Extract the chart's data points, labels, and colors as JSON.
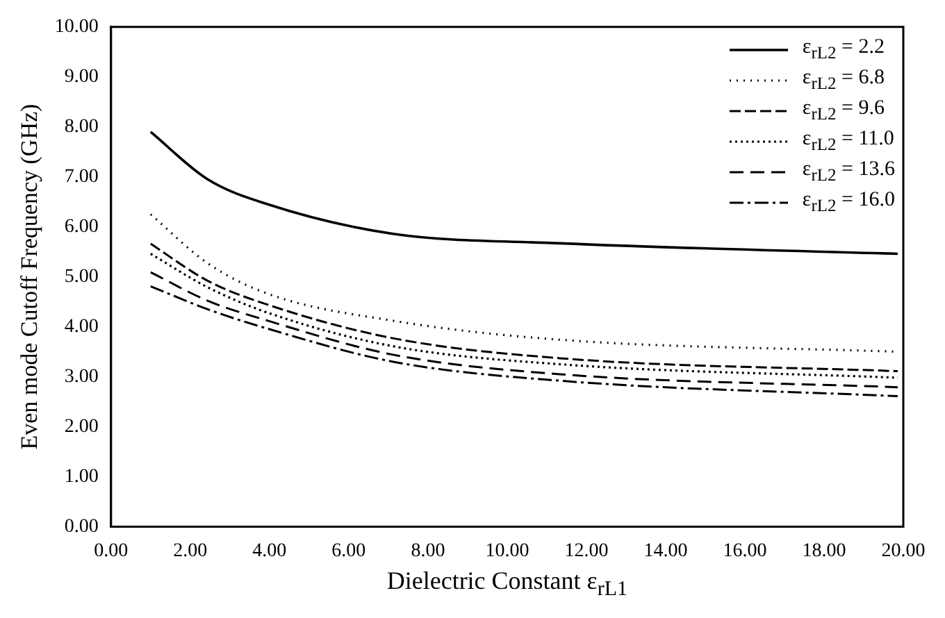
{
  "chart_data": {
    "type": "line",
    "xlabel": "Dielectric Constant ε$_{rL1}$",
    "ylabel": "Even mode Cutoff Frequency (GHz)",
    "x": [
      1,
      2.44,
      3.96,
      7.12,
      11.33,
      19.86
    ],
    "series": [
      {
        "name": "ε$_{rL2}$ = 2.2",
        "color": "#000000",
        "line_style": "solid",
        "values": [
          7.9,
          6.95,
          6.45,
          5.86,
          5.67,
          5.46
        ]
      },
      {
        "name": "ε$_{rL2}$ = 6.8",
        "color": "#000000",
        "line_style": "dotted",
        "values": [
          6.25,
          5.27,
          4.66,
          4.12,
          3.74,
          3.5
        ]
      },
      {
        "name": "ε$_{rL2}$ = 9.6",
        "color": "#000000",
        "line_style": "dashed",
        "values": [
          5.66,
          4.92,
          4.44,
          3.77,
          3.37,
          3.11
        ]
      },
      {
        "name": "ε$_{rL2}$ = 11.0",
        "color": "#000000",
        "line_style": "dotted",
        "values": [
          5.46,
          4.79,
          4.28,
          3.61,
          3.25,
          2.98
        ]
      },
      {
        "name": "ε$_{rL2}$ = 13.6",
        "color": "#000000",
        "line_style": "dashed",
        "values": [
          5.09,
          4.52,
          4.12,
          3.44,
          3.05,
          2.79
        ]
      },
      {
        "name": "ε$_{rL2}$ = 16.0",
        "color": "#000000",
        "line_style": "dashed",
        "values": [
          4.81,
          4.35,
          3.96,
          3.3,
          2.92,
          2.61
        ]
      }
    ],
    "xlim": [
      0,
      20
    ],
    "xticks": [
      {
        "value": 0,
        "label": "0.00"
      },
      {
        "value": 2,
        "label": "2.00"
      },
      {
        "value": 4,
        "label": "4.00"
      },
      {
        "value": 6,
        "label": "6.00"
      },
      {
        "value": 8,
        "label": "8.00"
      },
      {
        "value": 10,
        "label": "10.00"
      },
      {
        "value": 12,
        "label": "12.00"
      },
      {
        "value": 14,
        "label": "14.00"
      },
      {
        "value": 16,
        "label": "16.00"
      },
      {
        "value": 18,
        "label": "18.00"
      },
      {
        "value": 20,
        "label": "20.00"
      }
    ],
    "ylim": [
      0,
      10
    ],
    "yticks": [
      {
        "value": 0,
        "label": "0.00"
      },
      {
        "value": 1,
        "label": "1.00"
      },
      {
        "value": 2,
        "label": "2.00"
      },
      {
        "value": 3,
        "label": "3.00"
      },
      {
        "value": 4,
        "label": "4.00"
      },
      {
        "value": 5,
        "label": "5.00"
      },
      {
        "value": 6,
        "label": "6.00"
      },
      {
        "value": 7,
        "label": "7.00"
      },
      {
        "value": 8,
        "label": "8.00"
      },
      {
        "value": 9,
        "label": "9.00"
      },
      {
        "value": 10,
        "label": "10.00"
      }
    ],
    "grid": false,
    "legend": "top right",
    "marker": "none"
  }
}
